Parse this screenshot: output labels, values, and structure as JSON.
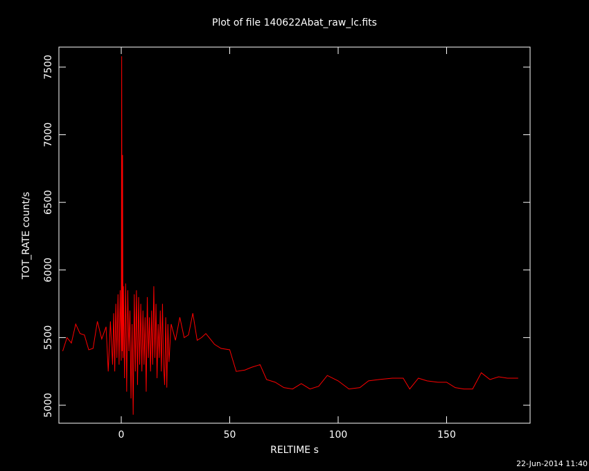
{
  "chart_data": {
    "type": "line",
    "title": "Plot of file 140622Abat_raw_lc.fits",
    "x_label": "RELTIME  s",
    "y_label": "TOT_RATE  count/s",
    "timestamp": "22-Jun-2014 11:40",
    "x": [
      -27,
      -25,
      -23,
      -21,
      -19,
      -17,
      -15,
      -13,
      -11,
      -9,
      -7,
      -6,
      -5,
      -4,
      -3.5,
      -3,
      -2.5,
      -2,
      -1.5,
      -1,
      -0.5,
      0,
      0.2,
      0.4,
      0.6,
      0.8,
      1,
      1.5,
      2,
      2.5,
      3,
      3.5,
      4,
      4.5,
      5,
      5.5,
      6,
      6.5,
      7,
      7.5,
      8,
      8.5,
      9,
      9.5,
      10,
      10.5,
      11,
      11.5,
      12,
      12.5,
      13,
      13.5,
      14,
      14.5,
      15,
      15.5,
      16,
      16.5,
      17,
      17.5,
      18,
      18.5,
      19,
      19.5,
      20,
      20.5,
      21,
      21.5,
      22,
      23,
      25,
      27,
      29,
      31,
      33,
      35,
      37,
      39,
      41,
      43,
      46,
      50,
      53,
      57,
      60,
      64,
      67,
      71,
      75,
      79,
      83,
      87,
      91,
      95,
      100,
      105,
      110,
      114,
      119,
      125,
      130,
      133,
      137,
      141,
      146,
      150,
      154,
      158,
      162,
      166,
      170,
      174,
      178,
      183
    ],
    "series": [
      {
        "name": "TOT_RATE",
        "color": "#ff0000",
        "values": [
          5400,
          5500,
          5460,
          5600,
          5530,
          5520,
          5410,
          5420,
          5620,
          5490,
          5580,
          5250,
          5620,
          5300,
          5680,
          5250,
          5750,
          5350,
          5820,
          5300,
          5850,
          5330,
          7580,
          5400,
          6850,
          5350,
          5880,
          5200,
          5900,
          5100,
          5850,
          5400,
          5700,
          5050,
          5600,
          4930,
          5820,
          5250,
          5850,
          5150,
          5800,
          5300,
          5750,
          5250,
          5700,
          5300,
          5650,
          5100,
          5800,
          5350,
          5650,
          5250,
          5700,
          5300,
          5880,
          5350,
          5750,
          5200,
          5600,
          5350,
          5700,
          5250,
          5750,
          5300,
          5150,
          5650,
          5130,
          5600,
          5320,
          5600,
          5480,
          5650,
          5500,
          5520,
          5680,
          5480,
          5500,
          5530,
          5490,
          5450,
          5420,
          5410,
          5250,
          5260,
          5280,
          5300,
          5190,
          5170,
          5130,
          5120,
          5160,
          5120,
          5140,
          5220,
          5180,
          5120,
          5130,
          5180,
          5190,
          5200,
          5200,
          5120,
          5200,
          5180,
          5170,
          5170,
          5130,
          5120,
          5120,
          5240,
          5190,
          5210,
          5200,
          5200
        ]
      }
    ],
    "xlim": [
      -28.75,
      188.5
    ],
    "ylim": [
      4867,
      7648
    ],
    "xticks": [
      0,
      50,
      100,
      150
    ],
    "yticks": [
      5000,
      5500,
      6000,
      6500,
      7000,
      7500
    ]
  }
}
